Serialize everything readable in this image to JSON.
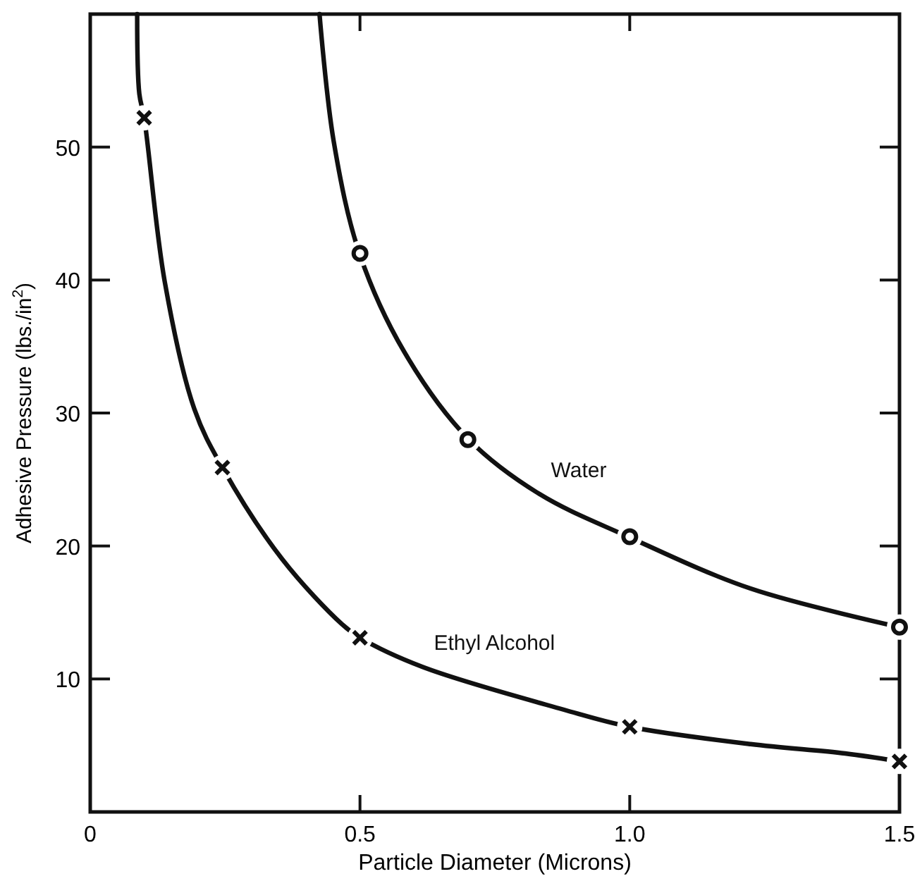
{
  "chart_data": {
    "type": "line",
    "xlabel": "Particle Diameter (Microns)",
    "ylabel": "Adhesive Pressure (lbs./in$^{2}$)",
    "xlim": [
      0,
      1.5
    ],
    "xticks": [
      0,
      0.5,
      {
        "value": 1.0,
        "label": "1.0"
      },
      1.5
    ],
    "ylim": [
      0,
      60
    ],
    "yticks": [
      {
        "value": 0,
        "label": null
      },
      10,
      20,
      30,
      40,
      50
    ],
    "series": [
      {
        "type": "line",
        "name": "Water",
        "color": "#111111",
        "marker": "none",
        "x": [
          0.425,
          0.451,
          0.499,
          0.582,
          0.702,
          0.833,
          0.997,
          1.224,
          1.5
        ],
        "values": [
          60,
          50.5,
          42.0,
          34.6,
          28.0,
          23.9,
          20.7,
          16.8,
          13.9
        ]
      },
      {
        "type": "scatter",
        "color": "#111111",
        "marker": "circle",
        "x": [
          0.5,
          0.7,
          1.0,
          1.5
        ],
        "values": [
          42.0,
          28.0,
          20.7,
          13.9
        ]
      },
      {
        "type": "line",
        "name": "Ethyl Alcohol",
        "color": "#111111",
        "marker": "none",
        "x": [
          0.087,
          0.091,
          0.1,
          0.138,
          0.193,
          0.245,
          0.356,
          0.467,
          0.5,
          0.616,
          0.877,
          1.0,
          1.224,
          1.399,
          1.5
        ],
        "values": [
          60,
          54,
          52.2,
          39.9,
          30.3,
          25.9,
          19.0,
          14.1,
          13.1,
          10.9,
          7.7,
          6.4,
          5.1,
          4.4,
          3.8
        ]
      },
      {
        "type": "scatter",
        "color": "#111111",
        "marker": "cross",
        "x": [
          0.1,
          0.245,
          0.5,
          1.0,
          1.5
        ],
        "values": [
          52.2,
          25.9,
          13.1,
          6.4,
          3.8
        ]
      }
    ]
  }
}
